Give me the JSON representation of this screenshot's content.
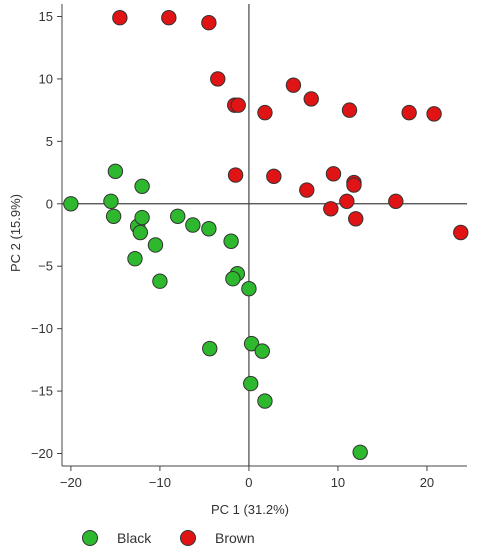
{
  "chart_data": {
    "type": "scatter",
    "title": "",
    "xlabel": "PC 1 (31.2%)",
    "ylabel": "PC 2 (15.9%)",
    "xlim": [
      -21,
      24.5
    ],
    "ylim": [
      -21,
      16
    ],
    "xticks": [
      -20,
      -10,
      0,
      10,
      20
    ],
    "yticks": [
      -20,
      -15,
      -10,
      -5,
      0,
      5,
      10,
      15
    ],
    "grid": false,
    "legend_position": "bottom-left",
    "series": [
      {
        "name": "Black",
        "color": "#2eb82e",
        "points": [
          [
            -20,
            0
          ],
          [
            -15,
            2.6
          ],
          [
            -15.5,
            0.2
          ],
          [
            -15.2,
            -1
          ],
          [
            -12,
            1.4
          ],
          [
            -12.5,
            -1.8
          ],
          [
            -12.2,
            -2.3
          ],
          [
            -12,
            -1.1
          ],
          [
            -10.5,
            -3.3
          ],
          [
            -12.8,
            -4.4
          ],
          [
            -10,
            -6.2
          ],
          [
            -8,
            -1
          ],
          [
            -6.3,
            -1.7
          ],
          [
            -4.5,
            -2
          ],
          [
            -2,
            -3
          ],
          [
            -1.3,
            -5.6
          ],
          [
            -1.8,
            -6
          ],
          [
            0,
            -6.8
          ],
          [
            0.3,
            -11.2
          ],
          [
            1.5,
            -11.8
          ],
          [
            -4.4,
            -11.6
          ],
          [
            0.2,
            -14.4
          ],
          [
            1.8,
            -15.8
          ],
          [
            12.5,
            -19.9
          ]
        ]
      },
      {
        "name": "Brown",
        "color": "#e01414",
        "points": [
          [
            -14.5,
            14.9
          ],
          [
            -9,
            14.9
          ],
          [
            -4.5,
            14.5
          ],
          [
            -3.5,
            10
          ],
          [
            -1.6,
            7.9
          ],
          [
            -1.2,
            7.9
          ],
          [
            1.8,
            7.3
          ],
          [
            5,
            9.5
          ],
          [
            7,
            8.4
          ],
          [
            11.3,
            7.5
          ],
          [
            18,
            7.3
          ],
          [
            20.8,
            7.2
          ],
          [
            -1.5,
            2.3
          ],
          [
            2.8,
            2.2
          ],
          [
            6.5,
            1.1
          ],
          [
            9.5,
            2.4
          ],
          [
            11.8,
            1.7
          ],
          [
            11.8,
            1.5
          ],
          [
            9.2,
            -0.4
          ],
          [
            11,
            0.2
          ],
          [
            12,
            -1.2
          ],
          [
            16.5,
            0.2
          ],
          [
            23.8,
            -2.3
          ]
        ]
      }
    ]
  }
}
